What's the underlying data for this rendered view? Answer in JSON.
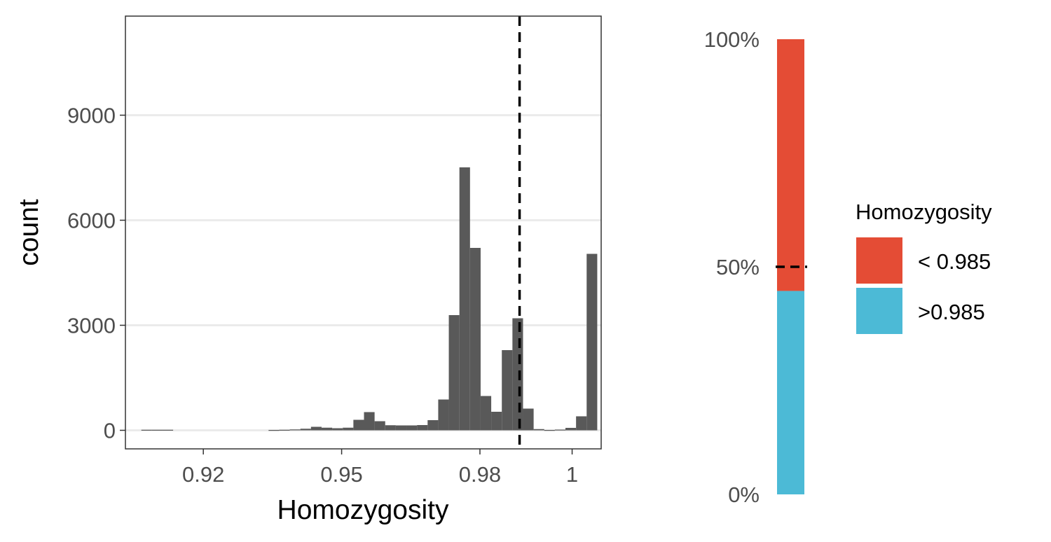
{
  "chart_data": [
    {
      "type": "bar",
      "subtype": "histogram",
      "xlabel": "Homozygosity",
      "ylabel": "count",
      "xlim": [
        0.9031,
        1.0063
      ],
      "ylim": [
        -530,
        11830
      ],
      "x_ticks": [
        0.92,
        0.95,
        0.98,
        1.0
      ],
      "x_tick_labels": [
        "0.92",
        "0.95",
        "0.98",
        "1"
      ],
      "y_ticks": [
        0,
        3000,
        6000,
        9000
      ],
      "y_tick_labels": [
        "0",
        "3000",
        "6000",
        "9000"
      ],
      "grid": "horizontal major",
      "bar_color": "#595959",
      "bin_width": 0.0023,
      "bins": [
        {
          "x": 0.9077,
          "y": 15
        },
        {
          "x": 0.91,
          "y": 15
        },
        {
          "x": 0.9123,
          "y": 15
        },
        {
          "x": 0.9353,
          "y": 10
        },
        {
          "x": 0.9376,
          "y": 15
        },
        {
          "x": 0.9399,
          "y": 25
        },
        {
          "x": 0.9422,
          "y": 45
        },
        {
          "x": 0.9445,
          "y": 100
        },
        {
          "x": 0.9468,
          "y": 75
        },
        {
          "x": 0.9491,
          "y": 60
        },
        {
          "x": 0.9514,
          "y": 75
        },
        {
          "x": 0.9537,
          "y": 300
        },
        {
          "x": 0.956,
          "y": 520
        },
        {
          "x": 0.9583,
          "y": 260
        },
        {
          "x": 0.9606,
          "y": 145
        },
        {
          "x": 0.9629,
          "y": 140
        },
        {
          "x": 0.9652,
          "y": 140
        },
        {
          "x": 0.9675,
          "y": 150
        },
        {
          "x": 0.9698,
          "y": 290
        },
        {
          "x": 0.9721,
          "y": 880
        },
        {
          "x": 0.9744,
          "y": 3290
        },
        {
          "x": 0.9767,
          "y": 7510
        },
        {
          "x": 0.979,
          "y": 5210
        },
        {
          "x": 0.9813,
          "y": 980
        },
        {
          "x": 0.9836,
          "y": 530
        },
        {
          "x": 0.9859,
          "y": 2290
        },
        {
          "x": 0.9882,
          "y": 3200
        },
        {
          "x": 0.9905,
          "y": 620
        },
        {
          "x": 0.9928,
          "y": 35
        },
        {
          "x": 0.9951,
          "y": 10
        },
        {
          "x": 0.9974,
          "y": 20
        },
        {
          "x": 0.9997,
          "y": 70
        },
        {
          "x": 1.002,
          "y": 400
        },
        {
          "x": 1.0043,
          "y": 5040
        }
      ],
      "threshold_line": {
        "x": 0.9886,
        "style": "dashed",
        "color": "#000000"
      }
    },
    {
      "type": "bar",
      "subtype": "stacked proportion",
      "ylim": [
        0,
        1
      ],
      "y_ticks": [
        0,
        0.5,
        1.0
      ],
      "y_tick_labels": [
        "0%",
        "50%",
        "100%"
      ],
      "series": [
        {
          "name": ">0.985",
          "value": 0.447,
          "color": "#4CBAD6"
        },
        {
          "name": "< 0.985",
          "value": 0.553,
          "color": "#E44C35"
        }
      ],
      "reference_line": {
        "y": 0.5,
        "style": "dashed",
        "color": "#000000"
      },
      "legend": {
        "title": "Homozygosity",
        "placement": "right",
        "entries": [
          {
            "label": "< 0.985",
            "color": "#E44C35"
          },
          {
            "label": ">0.985",
            "color": "#4CBAD6"
          }
        ]
      }
    }
  ]
}
